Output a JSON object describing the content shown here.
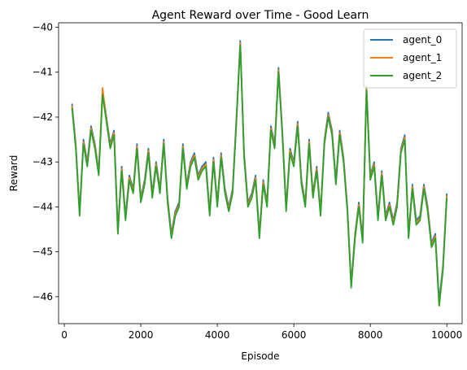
{
  "chart_data": {
    "type": "line",
    "title": "Agent Reward over Time - Good Learn",
    "xlabel": "Episode",
    "ylabel": "Reward",
    "xlim": [
      -150,
      10400
    ],
    "ylim": [
      -46.6,
      -39.9
    ],
    "xticks": [
      0,
      2000,
      4000,
      6000,
      8000,
      10000
    ],
    "yticks": [
      -46,
      -45,
      -44,
      -43,
      -42,
      -41,
      -40
    ],
    "ytick_labels": [
      "−46",
      "−45",
      "−44",
      "−43",
      "−42",
      "−41",
      "−40"
    ],
    "legend_position": "top-right",
    "grid": false,
    "x": [
      200,
      300,
      400,
      500,
      600,
      700,
      800,
      900,
      1000,
      1100,
      1200,
      1300,
      1400,
      1500,
      1600,
      1700,
      1800,
      1900,
      2000,
      2100,
      2200,
      2300,
      2400,
      2500,
      2600,
      2700,
      2800,
      2900,
      3000,
      3100,
      3200,
      3300,
      3400,
      3500,
      3600,
      3700,
      3800,
      3900,
      4000,
      4100,
      4200,
      4300,
      4400,
      4500,
      4600,
      4700,
      4800,
      4900,
      5000,
      5100,
      5200,
      5300,
      5400,
      5500,
      5600,
      5700,
      5800,
      5900,
      6000,
      6100,
      6200,
      6300,
      6400,
      6500,
      6600,
      6700,
      6800,
      6900,
      7000,
      7100,
      7200,
      7300,
      7400,
      7500,
      7600,
      7700,
      7800,
      7900,
      8000,
      8100,
      8200,
      8300,
      8400,
      8500,
      8600,
      8700,
      8800,
      8900,
      9000,
      9100,
      9200,
      9300,
      9400,
      9500,
      9600,
      9700,
      9800,
      9900,
      10000
    ],
    "series": [
      {
        "name": "agent_0",
        "color": "#1f77b4",
        "values": [
          -41.7,
          -42.6,
          -44.1,
          -42.5,
          -43.0,
          -42.2,
          -42.6,
          -43.2,
          -41.4,
          -42.0,
          -42.6,
          -42.3,
          -44.5,
          -43.1,
          -44.2,
          -43.3,
          -43.6,
          -42.6,
          -43.8,
          -43.4,
          -42.7,
          -43.7,
          -43.0,
          -43.6,
          -42.5,
          -43.8,
          -44.6,
          -44.1,
          -43.9,
          -42.6,
          -43.5,
          -43.0,
          -42.8,
          -43.3,
          -43.1,
          -43.0,
          -44.1,
          -42.9,
          -43.9,
          -42.8,
          -43.6,
          -44.0,
          -43.6,
          -42.0,
          -40.3,
          -42.8,
          -43.9,
          -43.7,
          -43.3,
          -44.6,
          -43.4,
          -43.9,
          -42.2,
          -42.6,
          -40.9,
          -42.3,
          -44.0,
          -42.7,
          -43.0,
          -42.1,
          -43.4,
          -43.9,
          -42.5,
          -43.7,
          -43.1,
          -44.1,
          -42.5,
          -41.9,
          -42.3,
          -43.4,
          -42.3,
          -42.9,
          -44.0,
          -45.7,
          -44.6,
          -43.9,
          -44.7,
          -41.3,
          -43.3,
          -43.0,
          -44.2,
          -43.2,
          -44.2,
          -43.9,
          -44.3,
          -43.9,
          -42.7,
          -42.4,
          -44.6,
          -43.5,
          -44.3,
          -44.2,
          -43.5,
          -44.0,
          -44.8,
          -44.6,
          -46.1,
          -45.3,
          -43.7
        ]
      },
      {
        "name": "agent_1",
        "color": "#ff7f0e",
        "values": [
          -41.75,
          -42.65,
          -44.15,
          -42.55,
          -43.05,
          -42.25,
          -42.65,
          -43.25,
          -41.35,
          -42.05,
          -42.65,
          -42.35,
          -44.55,
          -43.15,
          -44.25,
          -43.35,
          -43.65,
          -42.65,
          -43.85,
          -43.45,
          -42.75,
          -43.75,
          -43.05,
          -43.65,
          -42.55,
          -43.85,
          -44.65,
          -44.15,
          -43.95,
          -42.65,
          -43.55,
          -43.05,
          -42.85,
          -43.35,
          -43.15,
          -43.05,
          -44.15,
          -42.95,
          -43.95,
          -42.85,
          -43.65,
          -44.05,
          -43.65,
          -42.05,
          -40.35,
          -42.85,
          -43.95,
          -43.75,
          -43.35,
          -44.65,
          -43.45,
          -43.95,
          -42.25,
          -42.65,
          -40.95,
          -42.35,
          -44.05,
          -42.75,
          -43.05,
          -42.15,
          -43.45,
          -43.95,
          -42.55,
          -43.75,
          -43.15,
          -44.15,
          -42.55,
          -41.95,
          -42.35,
          -43.45,
          -42.35,
          -42.95,
          -44.05,
          -45.75,
          -44.65,
          -43.95,
          -44.75,
          -41.35,
          -43.35,
          -43.05,
          -44.25,
          -43.25,
          -44.25,
          -43.95,
          -44.35,
          -43.95,
          -42.75,
          -42.45,
          -44.65,
          -43.55,
          -44.35,
          -44.25,
          -43.55,
          -44.05,
          -44.85,
          -44.65,
          -46.2,
          -45.35,
          -43.75
        ]
      },
      {
        "name": "agent_2",
        "color": "#2ca02c",
        "values": [
          -41.8,
          -42.7,
          -44.2,
          -42.6,
          -43.1,
          -42.3,
          -42.7,
          -43.3,
          -41.5,
          -42.1,
          -42.7,
          -42.4,
          -44.6,
          -43.2,
          -44.3,
          -43.4,
          -43.7,
          -42.7,
          -43.9,
          -43.5,
          -42.8,
          -43.8,
          -43.1,
          -43.7,
          -42.6,
          -43.9,
          -44.7,
          -44.2,
          -44.0,
          -42.7,
          -43.6,
          -43.1,
          -42.9,
          -43.4,
          -43.2,
          -43.1,
          -44.2,
          -43.0,
          -44.0,
          -42.9,
          -43.7,
          -44.1,
          -43.7,
          -42.1,
          -40.4,
          -42.9,
          -44.0,
          -43.8,
          -43.4,
          -44.7,
          -43.5,
          -44.0,
          -42.3,
          -42.7,
          -41.0,
          -42.4,
          -44.1,
          -42.8,
          -43.1,
          -42.2,
          -43.5,
          -44.0,
          -42.6,
          -43.8,
          -43.2,
          -44.2,
          -42.6,
          -42.0,
          -42.4,
          -43.5,
          -42.4,
          -43.0,
          -44.1,
          -45.8,
          -44.7,
          -44.0,
          -44.8,
          -41.4,
          -43.4,
          -43.1,
          -44.3,
          -43.3,
          -44.3,
          -44.0,
          -44.4,
          -44.0,
          -42.8,
          -42.5,
          -44.7,
          -43.6,
          -44.4,
          -44.3,
          -43.6,
          -44.1,
          -44.9,
          -44.7,
          -46.2,
          -45.4,
          -43.8
        ]
      }
    ]
  }
}
